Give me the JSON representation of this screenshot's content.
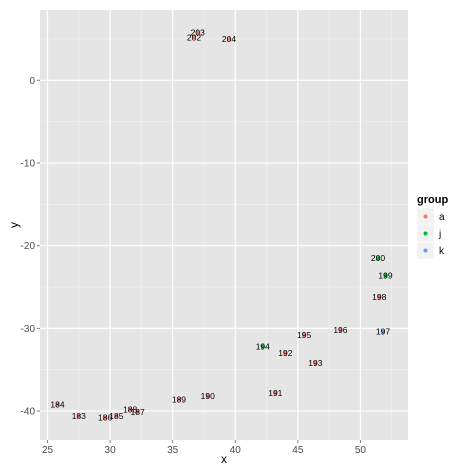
{
  "chart_data": {
    "type": "scatter",
    "title": "",
    "xlabel": "x",
    "ylabel": "y",
    "xlim": [
      24.4,
      53.8
    ],
    "ylim": [
      -43.5,
      8.5
    ],
    "xticks": [
      25,
      30,
      35,
      40,
      45,
      50
    ],
    "yticks": [
      0,
      -10,
      -20,
      -30,
      -40
    ],
    "grid": true,
    "legend": {
      "title": "group",
      "position": "right",
      "entries": [
        {
          "name": "a",
          "color": "#F8766D"
        },
        {
          "name": "j",
          "color": "#00BA38"
        },
        {
          "name": "k",
          "color": "#619CFF"
        }
      ]
    },
    "points": [
      {
        "label": "183",
        "x": 27.5,
        "y": -40.6,
        "group": "a"
      },
      {
        "label": "184",
        "x": 25.8,
        "y": -39.2,
        "group": "a"
      },
      {
        "label": "185",
        "x": 30.5,
        "y": -40.6,
        "group": "a"
      },
      {
        "label": "186",
        "x": 29.6,
        "y": -40.8,
        "group": "a"
      },
      {
        "label": "187",
        "x": 32.2,
        "y": -40.1,
        "group": "a"
      },
      {
        "label": "188",
        "x": 31.6,
        "y": -39.8,
        "group": "a"
      },
      {
        "label": "189",
        "x": 35.5,
        "y": -38.6,
        "group": "a"
      },
      {
        "label": "190",
        "x": 37.8,
        "y": -38.2,
        "group": "a"
      },
      {
        "label": "191",
        "x": 43.2,
        "y": -37.8,
        "group": "a"
      },
      {
        "label": "192",
        "x": 44.0,
        "y": -33.0,
        "group": "a"
      },
      {
        "label": "193",
        "x": 46.4,
        "y": -34.2,
        "group": "a"
      },
      {
        "label": "194",
        "x": 42.2,
        "y": -32.2,
        "group": "j"
      },
      {
        "label": "195",
        "x": 45.5,
        "y": -30.8,
        "group": "a"
      },
      {
        "label": "196",
        "x": 48.4,
        "y": -30.2,
        "group": "a"
      },
      {
        "label": "197",
        "x": 51.8,
        "y": -30.4,
        "group": "k"
      },
      {
        "label": "198",
        "x": 51.5,
        "y": -26.2,
        "group": "a"
      },
      {
        "label": "199",
        "x": 52.0,
        "y": -23.6,
        "group": "j"
      },
      {
        "label": "200",
        "x": 51.4,
        "y": -21.5,
        "group": "j"
      },
      {
        "label": "202",
        "x": 36.7,
        "y": 5.2,
        "group": "a"
      },
      {
        "label": "203",
        "x": 37.0,
        "y": 5.8,
        "group": "a"
      },
      {
        "label": "204",
        "x": 39.5,
        "y": 5.0,
        "group": "a"
      }
    ]
  }
}
